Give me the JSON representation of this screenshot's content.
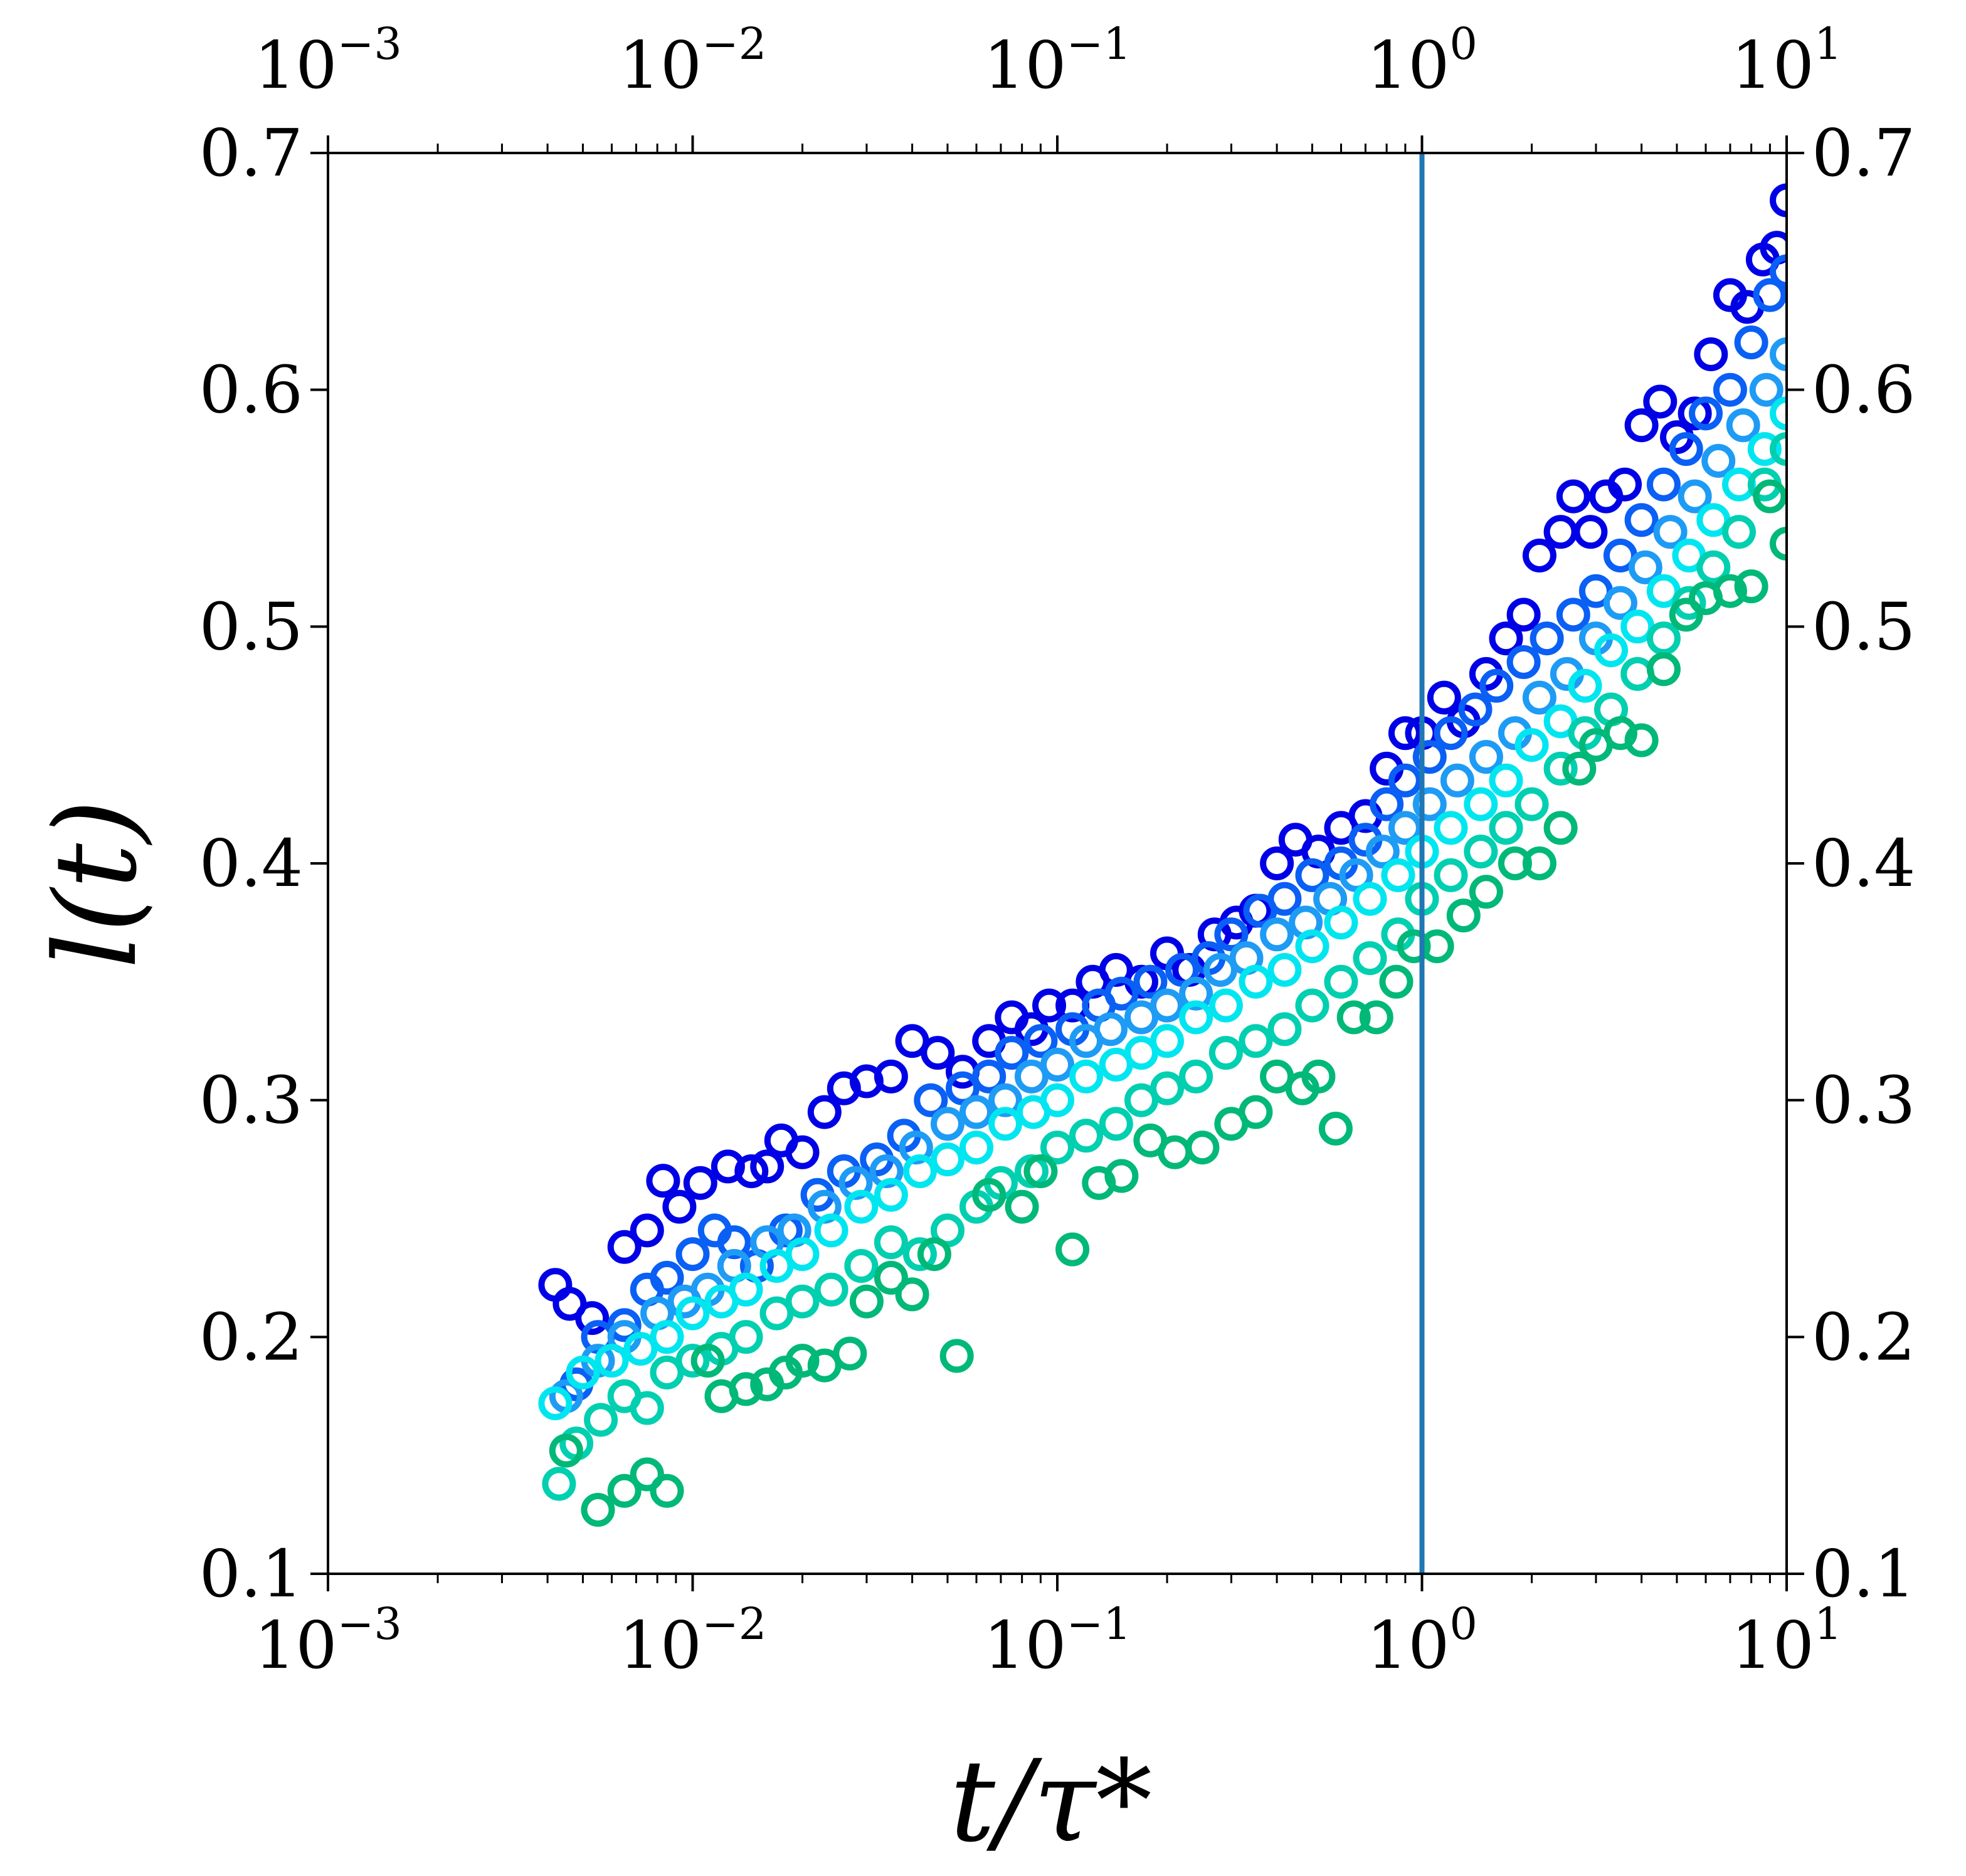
{
  "chart_data": {
    "type": "scatter",
    "title": "",
    "xlabel": "t/τ*",
    "ylabel": "l(t)",
    "x_scale": "log",
    "xlim": [
      0.001,
      10
    ],
    "ylim": [
      0.1,
      0.7
    ],
    "x_ticks": [
      {
        "value": 0.001,
        "base": "10",
        "exp": "−3"
      },
      {
        "value": 0.01,
        "base": "10",
        "exp": "−2"
      },
      {
        "value": 0.1,
        "base": "10",
        "exp": "−1"
      },
      {
        "value": 1,
        "base": "10",
        "exp": "0"
      },
      {
        "value": 10,
        "base": "10",
        "exp": "1"
      }
    ],
    "y_ticks": [
      "0.1",
      "0.2",
      "0.3",
      "0.4",
      "0.5",
      "0.6",
      "0.7"
    ],
    "vline": {
      "x": 1,
      "color": "#1f77b4"
    },
    "grid": false,
    "legend": "none",
    "series": [
      {
        "color": "#0000e6",
        "points": [
          [
            0.0042,
            0.222
          ],
          [
            0.0046,
            0.214
          ],
          [
            0.0053,
            0.208
          ],
          [
            0.0065,
            0.238
          ],
          [
            0.0075,
            0.245
          ],
          [
            0.0083,
            0.266
          ],
          [
            0.0092,
            0.255
          ],
          [
            0.0105,
            0.265
          ],
          [
            0.0125,
            0.272
          ],
          [
            0.0145,
            0.27
          ],
          [
            0.016,
            0.272
          ],
          [
            0.0175,
            0.283
          ],
          [
            0.02,
            0.278
          ],
          [
            0.023,
            0.295
          ],
          [
            0.026,
            0.305
          ],
          [
            0.03,
            0.308
          ],
          [
            0.035,
            0.31
          ],
          [
            0.04,
            0.325
          ],
          [
            0.047,
            0.32
          ],
          [
            0.055,
            0.312
          ],
          [
            0.065,
            0.325
          ],
          [
            0.075,
            0.335
          ],
          [
            0.085,
            0.33
          ],
          [
            0.095,
            0.34
          ],
          [
            0.11,
            0.34
          ],
          [
            0.125,
            0.35
          ],
          [
            0.145,
            0.355
          ],
          [
            0.17,
            0.35
          ],
          [
            0.2,
            0.362
          ],
          [
            0.23,
            0.355
          ],
          [
            0.27,
            0.37
          ],
          [
            0.31,
            0.375
          ],
          [
            0.35,
            0.38
          ],
          [
            0.4,
            0.4
          ],
          [
            0.45,
            0.41
          ],
          [
            0.52,
            0.405
          ],
          [
            0.6,
            0.415
          ],
          [
            0.7,
            0.42
          ],
          [
            0.8,
            0.44
          ],
          [
            0.9,
            0.455
          ],
          [
            1.0,
            0.455
          ],
          [
            1.15,
            0.47
          ],
          [
            1.3,
            0.46
          ],
          [
            1.5,
            0.48
          ],
          [
            1.7,
            0.495
          ],
          [
            1.9,
            0.505
          ],
          [
            2.1,
            0.53
          ],
          [
            2.4,
            0.54
          ],
          [
            2.6,
            0.555
          ],
          [
            2.9,
            0.54
          ],
          [
            3.2,
            0.555
          ],
          [
            3.6,
            0.56
          ],
          [
            4.0,
            0.585
          ],
          [
            4.5,
            0.595
          ],
          [
            5.0,
            0.58
          ],
          [
            5.6,
            0.59
          ],
          [
            6.2,
            0.615
          ],
          [
            7.0,
            0.64
          ],
          [
            7.8,
            0.635
          ],
          [
            8.6,
            0.655
          ],
          [
            9.4,
            0.66
          ],
          [
            10.0,
            0.68
          ]
        ]
      },
      {
        "color": "#0a5ff5",
        "points": [
          [
            0.0048,
            0.18
          ],
          [
            0.0055,
            0.2
          ],
          [
            0.0065,
            0.205
          ],
          [
            0.0075,
            0.22
          ],
          [
            0.0085,
            0.225
          ],
          [
            0.01,
            0.235
          ],
          [
            0.0115,
            0.245
          ],
          [
            0.013,
            0.24
          ],
          [
            0.015,
            0.23
          ],
          [
            0.018,
            0.245
          ],
          [
            0.022,
            0.26
          ],
          [
            0.026,
            0.27
          ],
          [
            0.032,
            0.275
          ],
          [
            0.038,
            0.285
          ],
          [
            0.045,
            0.3
          ],
          [
            0.055,
            0.305
          ],
          [
            0.065,
            0.31
          ],
          [
            0.075,
            0.32
          ],
          [
            0.09,
            0.325
          ],
          [
            0.11,
            0.33
          ],
          [
            0.13,
            0.34
          ],
          [
            0.15,
            0.345
          ],
          [
            0.18,
            0.35
          ],
          [
            0.22,
            0.355
          ],
          [
            0.26,
            0.36
          ],
          [
            0.3,
            0.37
          ],
          [
            0.36,
            0.38
          ],
          [
            0.42,
            0.385
          ],
          [
            0.5,
            0.395
          ],
          [
            0.6,
            0.4
          ],
          [
            0.7,
            0.41
          ],
          [
            0.8,
            0.425
          ],
          [
            0.9,
            0.435
          ],
          [
            1.05,
            0.445
          ],
          [
            1.2,
            0.455
          ],
          [
            1.4,
            0.465
          ],
          [
            1.6,
            0.475
          ],
          [
            1.9,
            0.485
          ],
          [
            2.2,
            0.495
          ],
          [
            2.6,
            0.505
          ],
          [
            3.0,
            0.515
          ],
          [
            3.5,
            0.53
          ],
          [
            4.0,
            0.545
          ],
          [
            4.6,
            0.56
          ],
          [
            5.3,
            0.575
          ],
          [
            6.0,
            0.59
          ],
          [
            7.0,
            0.6
          ],
          [
            8.0,
            0.62
          ],
          [
            9.0,
            0.64
          ],
          [
            10.0,
            0.65
          ]
        ]
      },
      {
        "color": "#1e9bf5",
        "points": [
          [
            0.0045,
            0.175
          ],
          [
            0.0055,
            0.19
          ],
          [
            0.0065,
            0.2
          ],
          [
            0.008,
            0.21
          ],
          [
            0.0095,
            0.215
          ],
          [
            0.011,
            0.22
          ],
          [
            0.013,
            0.23
          ],
          [
            0.016,
            0.24
          ],
          [
            0.019,
            0.245
          ],
          [
            0.023,
            0.255
          ],
          [
            0.028,
            0.265
          ],
          [
            0.034,
            0.27
          ],
          [
            0.041,
            0.28
          ],
          [
            0.05,
            0.29
          ],
          [
            0.06,
            0.295
          ],
          [
            0.072,
            0.3
          ],
          [
            0.085,
            0.31
          ],
          [
            0.1,
            0.315
          ],
          [
            0.12,
            0.325
          ],
          [
            0.14,
            0.33
          ],
          [
            0.17,
            0.335
          ],
          [
            0.2,
            0.34
          ],
          [
            0.24,
            0.345
          ],
          [
            0.28,
            0.355
          ],
          [
            0.33,
            0.36
          ],
          [
            0.4,
            0.37
          ],
          [
            0.48,
            0.375
          ],
          [
            0.56,
            0.385
          ],
          [
            0.66,
            0.395
          ],
          [
            0.78,
            0.405
          ],
          [
            0.9,
            0.415
          ],
          [
            1.05,
            0.425
          ],
          [
            1.25,
            0.435
          ],
          [
            1.5,
            0.445
          ],
          [
            1.8,
            0.455
          ],
          [
            2.1,
            0.47
          ],
          [
            2.5,
            0.48
          ],
          [
            3.0,
            0.495
          ],
          [
            3.5,
            0.51
          ],
          [
            4.1,
            0.525
          ],
          [
            4.8,
            0.54
          ],
          [
            5.6,
            0.555
          ],
          [
            6.5,
            0.57
          ],
          [
            7.6,
            0.585
          ],
          [
            8.8,
            0.6
          ],
          [
            10.0,
            0.615
          ]
        ]
      },
      {
        "color": "#00e6f0",
        "points": [
          [
            0.0042,
            0.172
          ],
          [
            0.005,
            0.185
          ],
          [
            0.006,
            0.19
          ],
          [
            0.0072,
            0.195
          ],
          [
            0.0085,
            0.2
          ],
          [
            0.01,
            0.21
          ],
          [
            0.012,
            0.215
          ],
          [
            0.014,
            0.22
          ],
          [
            0.017,
            0.23
          ],
          [
            0.02,
            0.235
          ],
          [
            0.024,
            0.245
          ],
          [
            0.029,
            0.255
          ],
          [
            0.035,
            0.26
          ],
          [
            0.042,
            0.27
          ],
          [
            0.05,
            0.275
          ],
          [
            0.06,
            0.28
          ],
          [
            0.072,
            0.29
          ],
          [
            0.086,
            0.295
          ],
          [
            0.1,
            0.3
          ],
          [
            0.12,
            0.31
          ],
          [
            0.145,
            0.315
          ],
          [
            0.17,
            0.32
          ],
          [
            0.2,
            0.325
          ],
          [
            0.24,
            0.335
          ],
          [
            0.29,
            0.34
          ],
          [
            0.35,
            0.35
          ],
          [
            0.42,
            0.355
          ],
          [
            0.5,
            0.365
          ],
          [
            0.6,
            0.375
          ],
          [
            0.72,
            0.385
          ],
          [
            0.86,
            0.395
          ],
          [
            1.0,
            0.405
          ],
          [
            1.2,
            0.415
          ],
          [
            1.45,
            0.425
          ],
          [
            1.7,
            0.435
          ],
          [
            2.0,
            0.45
          ],
          [
            2.4,
            0.46
          ],
          [
            2.8,
            0.475
          ],
          [
            3.3,
            0.49
          ],
          [
            3.9,
            0.5
          ],
          [
            4.6,
            0.515
          ],
          [
            5.4,
            0.53
          ],
          [
            6.3,
            0.545
          ],
          [
            7.4,
            0.56
          ],
          [
            8.7,
            0.575
          ],
          [
            10.0,
            0.59
          ]
        ]
      },
      {
        "color": "#00cfb0",
        "points": [
          [
            0.0043,
            0.138
          ],
          [
            0.0048,
            0.155
          ],
          [
            0.0056,
            0.165
          ],
          [
            0.0065,
            0.175
          ],
          [
            0.0075,
            0.17
          ],
          [
            0.0085,
            0.185
          ],
          [
            0.01,
            0.19
          ],
          [
            0.012,
            0.195
          ],
          [
            0.014,
            0.2
          ],
          [
            0.017,
            0.21
          ],
          [
            0.02,
            0.215
          ],
          [
            0.024,
            0.22
          ],
          [
            0.029,
            0.23
          ],
          [
            0.035,
            0.24
          ],
          [
            0.042,
            0.235
          ],
          [
            0.05,
            0.245
          ],
          [
            0.06,
            0.255
          ],
          [
            0.07,
            0.265
          ],
          [
            0.085,
            0.27
          ],
          [
            0.1,
            0.28
          ],
          [
            0.12,
            0.285
          ],
          [
            0.145,
            0.29
          ],
          [
            0.17,
            0.3
          ],
          [
            0.2,
            0.305
          ],
          [
            0.24,
            0.31
          ],
          [
            0.29,
            0.32
          ],
          [
            0.35,
            0.325
          ],
          [
            0.42,
            0.33
          ],
          [
            0.5,
            0.34
          ],
          [
            0.6,
            0.35
          ],
          [
            0.72,
            0.36
          ],
          [
            0.86,
            0.37
          ],
          [
            1.0,
            0.385
          ],
          [
            1.2,
            0.395
          ],
          [
            1.45,
            0.405
          ],
          [
            1.7,
            0.415
          ],
          [
            2.0,
            0.425
          ],
          [
            2.4,
            0.44
          ],
          [
            2.8,
            0.455
          ],
          [
            3.3,
            0.465
          ],
          [
            3.9,
            0.48
          ],
          [
            4.6,
            0.495
          ],
          [
            5.4,
            0.51
          ],
          [
            6.3,
            0.525
          ],
          [
            7.4,
            0.54
          ],
          [
            8.7,
            0.56
          ],
          [
            10.0,
            0.575
          ]
        ]
      },
      {
        "color": "#00b878",
        "points": [
          [
            0.0045,
            0.152
          ],
          [
            0.0055,
            0.127
          ],
          [
            0.0065,
            0.135
          ],
          [
            0.0075,
            0.142
          ],
          [
            0.0085,
            0.135
          ],
          [
            0.011,
            0.19
          ],
          [
            0.012,
            0.175
          ],
          [
            0.014,
            0.178
          ],
          [
            0.016,
            0.18
          ],
          [
            0.018,
            0.185
          ],
          [
            0.02,
            0.19
          ],
          [
            0.023,
            0.188
          ],
          [
            0.027,
            0.193
          ],
          [
            0.03,
            0.215
          ],
          [
            0.035,
            0.225
          ],
          [
            0.04,
            0.218
          ],
          [
            0.046,
            0.235
          ],
          [
            0.053,
            0.192
          ],
          [
            0.065,
            0.26
          ],
          [
            0.08,
            0.255
          ],
          [
            0.09,
            0.27
          ],
          [
            0.11,
            0.237
          ],
          [
            0.13,
            0.265
          ],
          [
            0.15,
            0.268
          ],
          [
            0.18,
            0.283
          ],
          [
            0.21,
            0.278
          ],
          [
            0.25,
            0.28
          ],
          [
            0.3,
            0.29
          ],
          [
            0.35,
            0.295
          ],
          [
            0.4,
            0.31
          ],
          [
            0.47,
            0.305
          ],
          [
            0.52,
            0.31
          ],
          [
            0.58,
            0.288
          ],
          [
            0.65,
            0.335
          ],
          [
            0.75,
            0.335
          ],
          [
            0.85,
            0.35
          ],
          [
            0.95,
            0.365
          ],
          [
            1.1,
            0.365
          ],
          [
            1.3,
            0.378
          ],
          [
            1.5,
            0.388
          ],
          [
            1.8,
            0.4
          ],
          [
            2.1,
            0.4
          ],
          [
            2.4,
            0.415
          ],
          [
            2.7,
            0.44
          ],
          [
            3.0,
            0.45
          ],
          [
            3.5,
            0.455
          ],
          [
            4.0,
            0.452
          ],
          [
            4.6,
            0.482
          ],
          [
            5.3,
            0.505
          ],
          [
            6.0,
            0.512
          ],
          [
            7.0,
            0.515
          ],
          [
            8.0,
            0.517
          ],
          [
            9.0,
            0.555
          ],
          [
            10.0,
            0.535
          ]
        ]
      }
    ]
  }
}
